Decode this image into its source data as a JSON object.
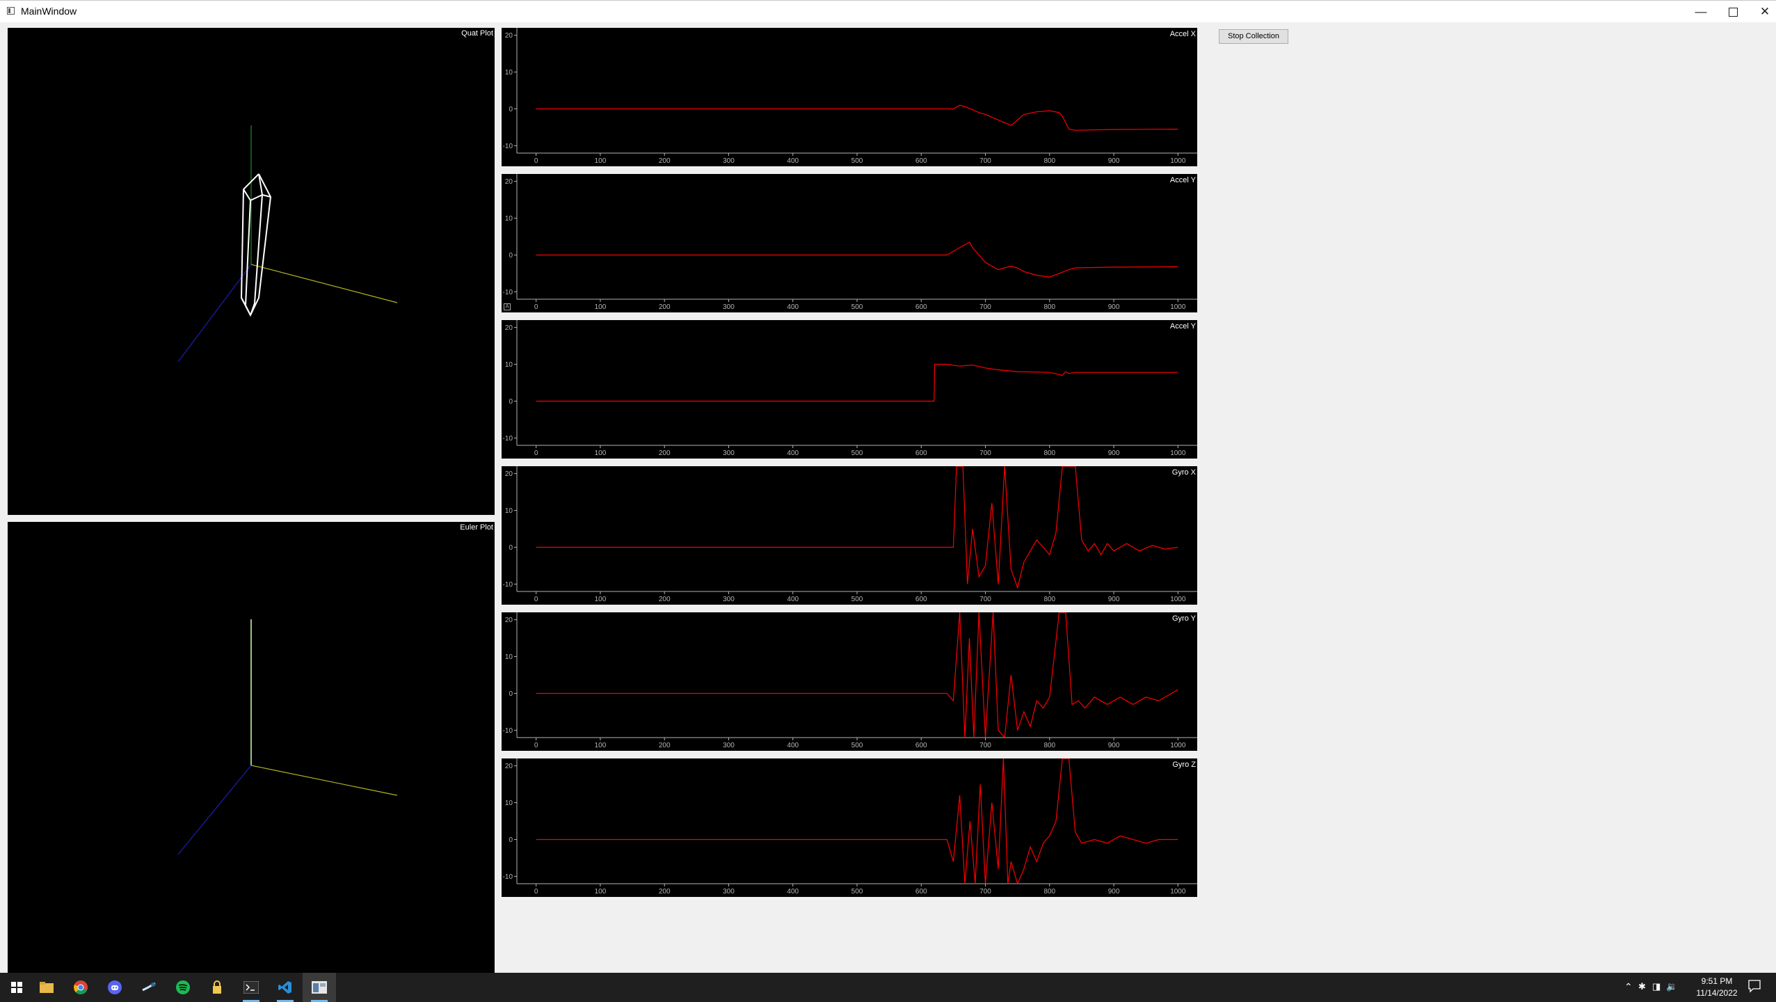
{
  "window": {
    "title": "MainWindow"
  },
  "controls": {
    "stop_collection_label": "Stop Collection"
  },
  "quat_plot": {
    "title": "Quat Plot"
  },
  "euler_plot": {
    "title": "Euler Plot"
  },
  "colors": {
    "trace": "#ff0000",
    "axis_text": "#b4b4b4",
    "x_axis": "#b4b41e",
    "y_axis": "#1e8c1e",
    "z_axis": "#1e1eb4",
    "euler_y_axis": "#d2ffaa"
  },
  "plots": [
    {
      "title": "Accel X"
    },
    {
      "title": "Accel Y"
    },
    {
      "title": "Accel Y"
    },
    {
      "title": "Gyro X"
    },
    {
      "title": "Gyro Y"
    },
    {
      "title": "Gyro Z"
    }
  ],
  "chart_data": [
    {
      "type": "line",
      "title": "Accel X",
      "x_ticks": [
        "0",
        "100",
        "200",
        "300",
        "400",
        "500",
        "600",
        "700",
        "800",
        "900",
        "1000"
      ],
      "y_ticks": [
        "20",
        "10",
        "0",
        "-10"
      ],
      "xlim": [
        -30,
        1030
      ],
      "ylim": [
        -12,
        22
      ],
      "series": [
        {
          "x": [
            0,
            650,
            660,
            670,
            690,
            700,
            720,
            740,
            750,
            760,
            780,
            800,
            815,
            820,
            830,
            840,
            900,
            1000
          ],
          "y": [
            0,
            0,
            1,
            0.5,
            -1,
            -1.5,
            -3,
            -4.5,
            -3,
            -1.5,
            -0.8,
            -0.5,
            -1,
            -2,
            -5.5,
            -5.8,
            -5.6,
            -5.5
          ]
        }
      ]
    },
    {
      "type": "line",
      "title": "Accel Y",
      "x_ticks": [
        "0",
        "100",
        "200",
        "300",
        "400",
        "500",
        "600",
        "700",
        "800",
        "900",
        "1000"
      ],
      "y_ticks": [
        "20",
        "10",
        "0",
        "-10"
      ],
      "xlim": [
        -30,
        1030
      ],
      "ylim": [
        -12,
        22
      ],
      "series": [
        {
          "x": [
            0,
            620,
            640,
            660,
            670,
            675,
            680,
            690,
            700,
            720,
            740,
            750,
            760,
            780,
            800,
            815,
            830,
            840,
            900,
            1000
          ],
          "y": [
            0,
            0,
            0,
            2,
            3,
            3.5,
            2,
            0,
            -2,
            -4,
            -3,
            -3.5,
            -4.5,
            -5.5,
            -6,
            -5,
            -4,
            -3.5,
            -3.3,
            -3.2
          ]
        }
      ]
    },
    {
      "type": "line",
      "title": "Accel Y",
      "x_ticks": [
        "0",
        "100",
        "200",
        "300",
        "400",
        "500",
        "600",
        "700",
        "800",
        "900",
        "1000"
      ],
      "y_ticks": [
        "20",
        "10",
        "0",
        "-10"
      ],
      "xlim": [
        -30,
        1030
      ],
      "ylim": [
        -12,
        22
      ],
      "series": [
        {
          "x": [
            0,
            620,
            621,
            640,
            660,
            680,
            700,
            720,
            750,
            800,
            820,
            825,
            830,
            840,
            900,
            1000
          ],
          "y": [
            0,
            0,
            10,
            10,
            9.5,
            9.8,
            9,
            8.5,
            8,
            7.8,
            7,
            8,
            7.5,
            7.8,
            7.8,
            7.8
          ]
        }
      ]
    },
    {
      "type": "line",
      "title": "Gyro X",
      "x_ticks": [
        "0",
        "100",
        "200",
        "300",
        "400",
        "500",
        "600",
        "700",
        "800",
        "900",
        "1000"
      ],
      "y_ticks": [
        "20",
        "10",
        "0",
        "-10"
      ],
      "xlim": [
        -30,
        1030
      ],
      "ylim": [
        -12,
        22
      ],
      "series": [
        {
          "x": [
            0,
            650,
            655,
            665,
            672,
            680,
            690,
            700,
            710,
            720,
            730,
            740,
            750,
            760,
            770,
            780,
            790,
            800,
            810,
            820,
            830,
            840,
            850,
            860,
            870,
            880,
            890,
            900,
            920,
            940,
            960,
            980,
            1000
          ],
          "y": [
            0,
            0,
            22,
            22,
            -10,
            5,
            -8,
            -5,
            12,
            -10,
            22,
            -6,
            -11,
            -4,
            -1,
            2,
            0,
            -2,
            4,
            22,
            22,
            22,
            2,
            -1,
            1,
            -2,
            1,
            -1,
            1,
            -1,
            0.5,
            -0.5,
            0
          ]
        }
      ]
    },
    {
      "type": "line",
      "title": "Gyro Y",
      "x_ticks": [
        "0",
        "100",
        "200",
        "300",
        "400",
        "500",
        "600",
        "700",
        "800",
        "900",
        "1000"
      ],
      "y_ticks": [
        "20",
        "10",
        "0",
        "-10"
      ],
      "xlim": [
        -30,
        1030
      ],
      "ylim": [
        -12,
        22
      ],
      "series": [
        {
          "x": [
            0,
            640,
            650,
            660,
            668,
            675,
            682,
            690,
            700,
            712,
            720,
            730,
            740,
            750,
            760,
            770,
            780,
            790,
            800,
            815,
            825,
            835,
            845,
            855,
            870,
            890,
            910,
            930,
            950,
            970,
            1000
          ],
          "y": [
            0,
            0,
            -2,
            22,
            -12,
            15,
            -12,
            22,
            -12,
            22,
            -10,
            -12,
            5,
            -10,
            -5,
            -9,
            -2,
            -4,
            -1,
            22,
            22,
            -3,
            -2,
            -4,
            -1,
            -3,
            -1,
            -3,
            -1,
            -2,
            1
          ]
        }
      ]
    },
    {
      "type": "line",
      "title": "Gyro Z",
      "x_ticks": [
        "0",
        "100",
        "200",
        "300",
        "400",
        "500",
        "600",
        "700",
        "800",
        "900",
        "1000"
      ],
      "y_ticks": [
        "20",
        "10",
        "0",
        "-10"
      ],
      "xlim": [
        -30,
        1030
      ],
      "ylim": [
        -12,
        22
      ],
      "series": [
        {
          "x": [
            0,
            640,
            650,
            660,
            668,
            676,
            684,
            692,
            700,
            710,
            720,
            728,
            735,
            740,
            750,
            760,
            770,
            780,
            790,
            800,
            810,
            820,
            830,
            840,
            850,
            870,
            890,
            910,
            930,
            950,
            970,
            1000
          ],
          "y": [
            0,
            0,
            -6,
            12,
            -12,
            5,
            -12,
            15,
            -12,
            10,
            -8,
            22,
            -12,
            -6,
            -12,
            -8,
            -2,
            -6,
            -1,
            1,
            5,
            22,
            22,
            2,
            -1,
            0,
            -1,
            1,
            0,
            -1,
            0,
            0
          ]
        }
      ]
    }
  ],
  "taskbar": {
    "time": "9:51 PM",
    "date": "11/14/2022",
    "apps": [
      "start-icon",
      "file-explorer-icon",
      "chrome-icon",
      "discord-icon",
      "steam-icon",
      "spotify-icon",
      "lock-app-icon",
      "terminal-icon",
      "vscode-icon",
      "mainwindow-app-icon"
    ]
  }
}
